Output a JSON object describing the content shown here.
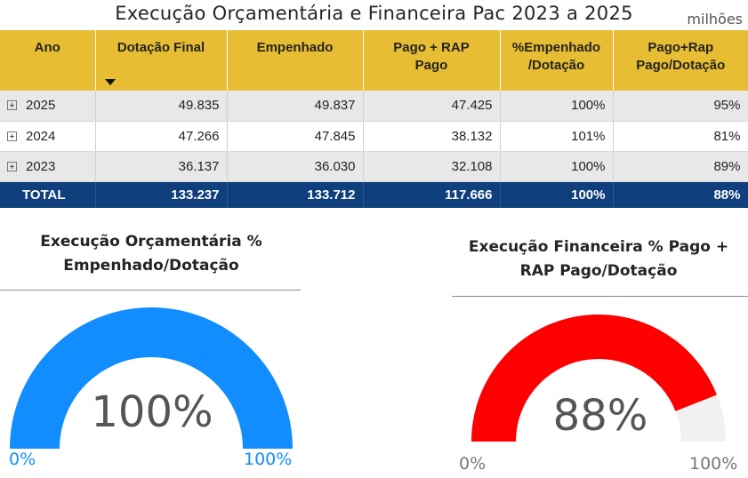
{
  "title": "Execução Orçamentária e Financeira Pac 2023 a 2025",
  "units": "milhões",
  "table": {
    "headers": {
      "ano": "Ano",
      "dotacao": "Dotação Final",
      "empenhado": "Empenhado",
      "pago_l1": "Pago + RAP",
      "pago_l2": "Pago",
      "pct_emp_l1": "%Empenhado",
      "pct_emp_l2": "/Dotação",
      "pct_pago_l1": "Pago+Rap",
      "pct_pago_l2": "Pago/Dotação"
    },
    "rows": [
      {
        "ano": "2025",
        "dotacao": "49.835",
        "empenhado": "49.837",
        "pago": "47.425",
        "pct_emp": "100%",
        "pct_pago": "95%"
      },
      {
        "ano": "2024",
        "dotacao": "47.266",
        "empenhado": "47.845",
        "pago": "38.132",
        "pct_emp": "101%",
        "pct_pago": "81%"
      },
      {
        "ano": "2023",
        "dotacao": "36.137",
        "empenhado": "36.030",
        "pago": "32.108",
        "pct_emp": "100%",
        "pct_pago": "89%"
      }
    ],
    "total": {
      "ano": "TOTAL",
      "dotacao": "133.237",
      "empenhado": "133.712",
      "pago": "117.666",
      "pct_emp": "100%",
      "pct_pago": "88%"
    }
  },
  "gauges": {
    "orcamentaria": {
      "title_l1": "Execução Orçamentária %",
      "title_l2": "Empenhado/Dotação",
      "value_label": "100%",
      "fraction": 1.0,
      "min_label": "0%",
      "max_label": "100%",
      "fill_color": "#118dff",
      "track_color": "#f2f2f2",
      "label_color": "#118dff"
    },
    "financeira": {
      "title_l1": "Execução Financeira % Pago +",
      "title_l2": "RAP Pago/Dotação",
      "value_label": "88%",
      "fraction": 0.88,
      "min_label": "0%",
      "max_label": "100%",
      "fill_color": "#ff0000",
      "track_color": "#f1f1f1",
      "label_color": "#777777"
    }
  }
}
